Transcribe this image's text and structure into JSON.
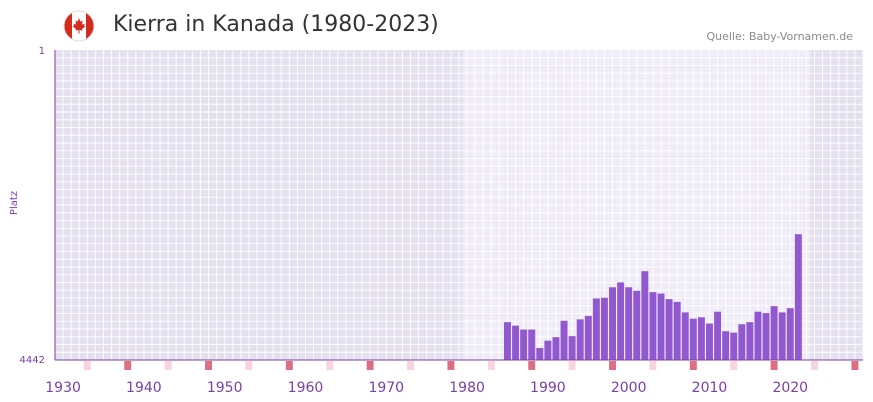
{
  "header": {
    "title": "Kierra in Kanada (1980-2023)",
    "source": "Quelle: Baby-Vornamen.de",
    "flag_icon": "canada-flag-icon"
  },
  "colors": {
    "bar": "#9158d0",
    "axis_text": "#7b3fa6",
    "plot_bg": "#e4e0ee",
    "highlight_bg": "#efecf7",
    "decade_marker": "#dd6f80",
    "half_decade_marker": "#f6d5dc"
  },
  "chart_data": {
    "type": "bar",
    "title": "Kierra in Kanada (1980-2023)",
    "xlabel": "",
    "ylabel": "Platz",
    "y_inverted": true,
    "ylim": [
      1,
      4442
    ],
    "ytick_labels": [
      "1",
      "4442"
    ],
    "xlim": [
      1929,
      2029
    ],
    "xtick_values": [
      1930,
      1940,
      1950,
      1960,
      1970,
      1980,
      1990,
      2000,
      2010,
      2020
    ],
    "highlight_range": [
      1980,
      2023
    ],
    "x": [
      1985,
      1986,
      1987,
      1988,
      1989,
      1990,
      1991,
      1992,
      1993,
      1994,
      1995,
      1996,
      1997,
      1998,
      1999,
      2000,
      2001,
      2002,
      2003,
      2004,
      2005,
      2006,
      2007,
      2008,
      2009,
      2010,
      2011,
      2012,
      2013,
      2014,
      2015,
      2016,
      2017,
      2018,
      2019,
      2020,
      2021
    ],
    "values": [
      3900,
      3950,
      4005,
      4005,
      4270,
      4165,
      4115,
      3880,
      4100,
      3860,
      3810,
      3560,
      3550,
      3400,
      3330,
      3400,
      3450,
      3170,
      3470,
      3490,
      3570,
      3610,
      3760,
      3850,
      3830,
      3920,
      3750,
      4030,
      4050,
      3930,
      3900,
      3750,
      3770,
      3670,
      3760,
      3700,
      2640
    ]
  }
}
